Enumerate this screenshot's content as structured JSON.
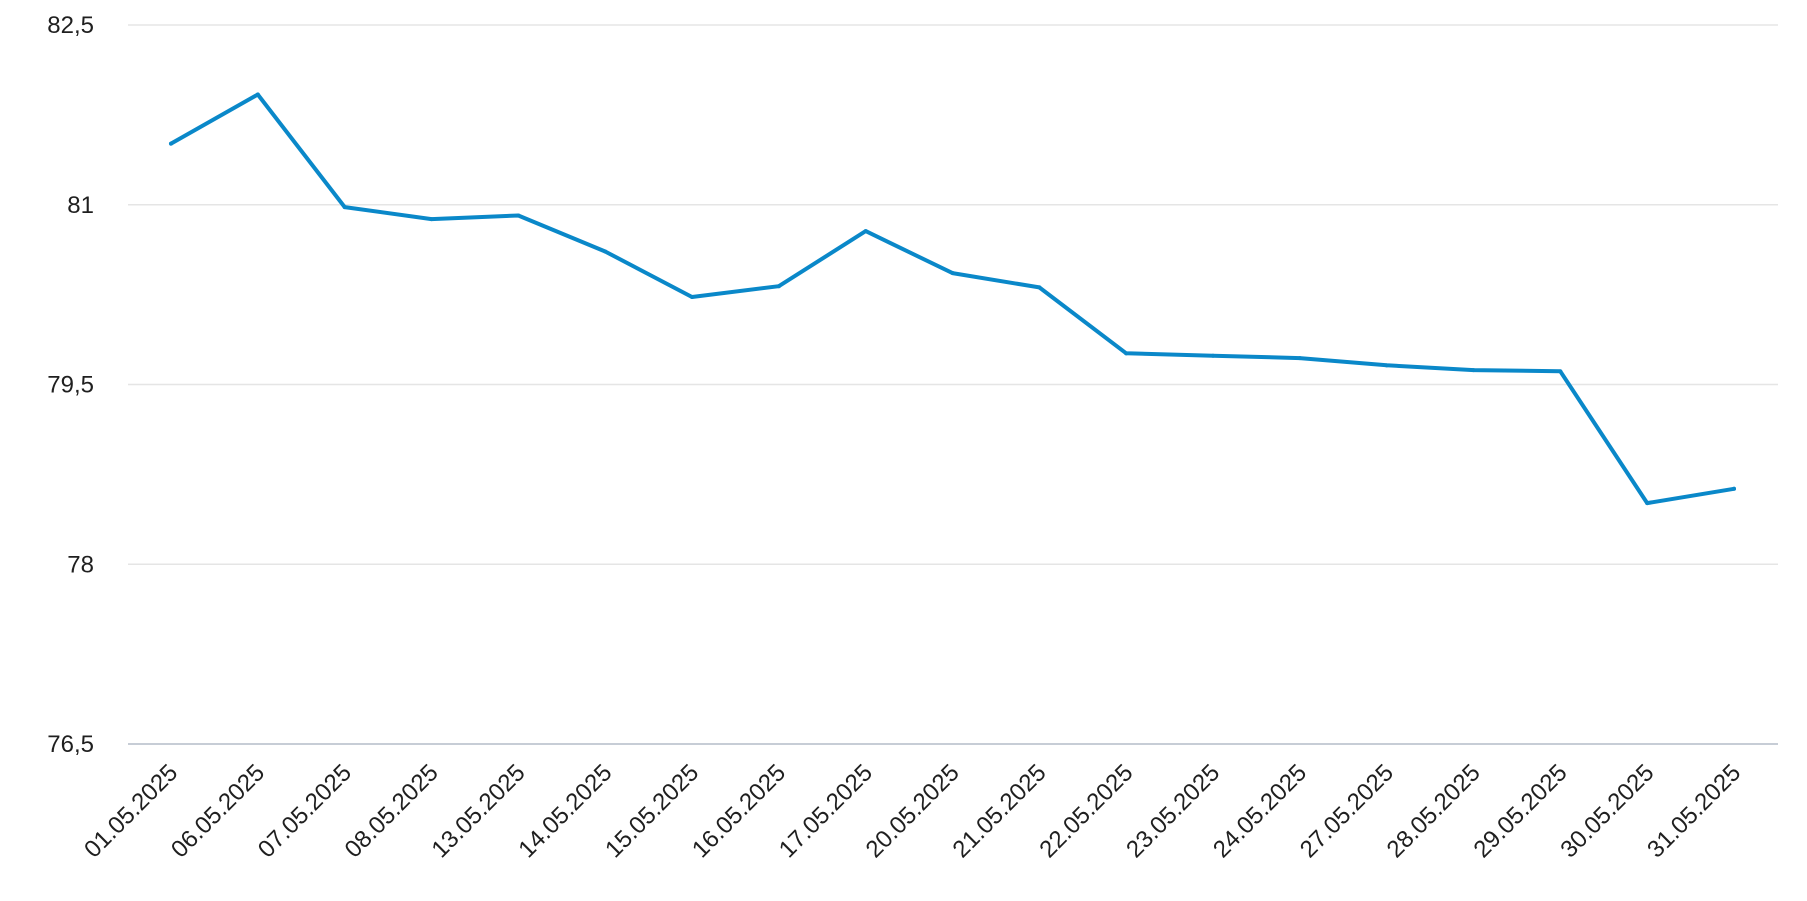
{
  "chart_data": {
    "type": "line",
    "title": "",
    "xlabel": "",
    "ylabel": "",
    "categories": [
      "01.05.2025",
      "06.05.2025",
      "07.05.2025",
      "08.05.2025",
      "13.05.2025",
      "14.05.2025",
      "15.05.2025",
      "16.05.2025",
      "17.05.2025",
      "20.05.2025",
      "21.05.2025",
      "22.05.2025",
      "23.05.2025",
      "24.05.2025",
      "27.05.2025",
      "28.05.2025",
      "29.05.2025",
      "30.05.2025",
      "31.05.2025"
    ],
    "series": [
      {
        "color": "#0a88c9",
        "values": [
          81.51,
          81.92,
          80.98,
          80.88,
          80.91,
          80.61,
          80.23,
          80.32,
          80.78,
          80.43,
          80.31,
          79.76,
          79.74,
          79.72,
          79.66,
          79.62,
          79.61,
          78.51,
          78.63
        ]
      }
    ],
    "ylim": [
      76.5,
      82.5
    ],
    "yticks": [
      76.5,
      78,
      79.5,
      81,
      82.5
    ],
    "ytick_labels": [
      "76,5",
      "78",
      "79,5",
      "81",
      "82,5"
    ],
    "grid": true,
    "legend": "none"
  }
}
